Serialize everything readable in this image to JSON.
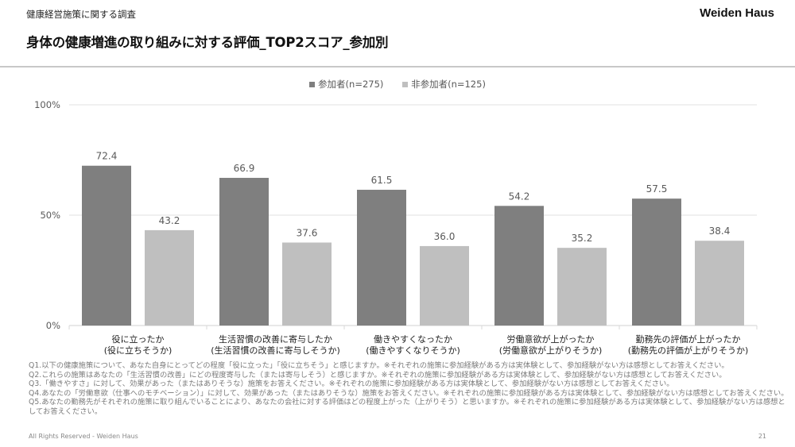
{
  "header": {
    "survey_label": "健康経営施策に関する調査",
    "brand": "Weiden Haus",
    "title": "身体の健康増進の取り組みに対する評価_TOP2スコア_参加別"
  },
  "colors": {
    "participant": "#7f7f7f",
    "non_participant": "#bfbfbf",
    "gridline": "#e6e6e6",
    "text": "#595959"
  },
  "chart_data": {
    "type": "bar",
    "title": "身体の健康増進の取り組みに対する評価_TOP2スコア_参加別",
    "xlabel": "",
    "ylabel": "",
    "ylim": [
      0,
      100
    ],
    "yticks": [
      "0%",
      "50%",
      "100%"
    ],
    "ytick_values": [
      0,
      50,
      100
    ],
    "grid": true,
    "legend_position": "top-center",
    "categories": [
      [
        "役に立ったか",
        "(役に立ちそうか)"
      ],
      [
        "生活習慣の改善に寄与したか",
        "(生活習慣の改善に寄与しそうか)"
      ],
      [
        "働きやすくなったか",
        "(働きやすくなりそうか)"
      ],
      [
        "労働意欲が上がったか",
        "(労働意欲が上がりそうか)"
      ],
      [
        "勤務先の評価が上がったか",
        "(勤務先の評価が上がりそうか)"
      ]
    ],
    "series": [
      {
        "name": "参加者(n=275)",
        "values": [
          72.4,
          66.9,
          61.5,
          54.2,
          57.5
        ],
        "labels": [
          "72.4",
          "66.9",
          "61.5",
          "54.2",
          "57.5"
        ]
      },
      {
        "name": "非参加者(n=125)",
        "values": [
          43.2,
          37.6,
          36.0,
          35.2,
          38.4
        ],
        "labels": [
          "43.2",
          "37.6",
          "36.0",
          "35.2",
          "38.4"
        ]
      }
    ]
  },
  "notes": [
    "Q1.以下の健康施策について、あなた自身にとってどの程度「役に立った」「役に立ちそう」と感じますか。※それぞれの施策に参加経験がある方は実体験として、参加経験がない方は感想としてお答えください。",
    "Q2.これらの施策はあなたの「生活習慣の改善」にどの程度寄与した（または寄与しそう）と感じますか。※それぞれの施策に参加経験がある方は実体験として、参加経験がない方は感想としてお答えください。",
    "Q3.「働きやすさ」に対して、効果があった（またはありそうな）施策をお答えください。※それぞれの施策に参加経験がある方は実体験として、参加経験がない方は感想としてお答えください。",
    "Q4.あなたの「労働意欲（仕事へのモチベーション）」に対して、効果があった（またはありそうな）施策をお答えください。※それぞれの施策に参加経験がある方は実体験として、参加経験がない方は感想としてお答えください。",
    "Q5.あなたの勤務先がそれぞれの施策に取り組んでいることにより、あなたの会社に対する評価はどの程度上がった（上がりそう）と思いますか。※それぞれの施策に参加経験がある方は実体験として、参加経験がない方は感想としてお答えください。"
  ],
  "footer": {
    "copyright": "All Rights Reserved - Weiden Haus",
    "page_number": "21"
  }
}
